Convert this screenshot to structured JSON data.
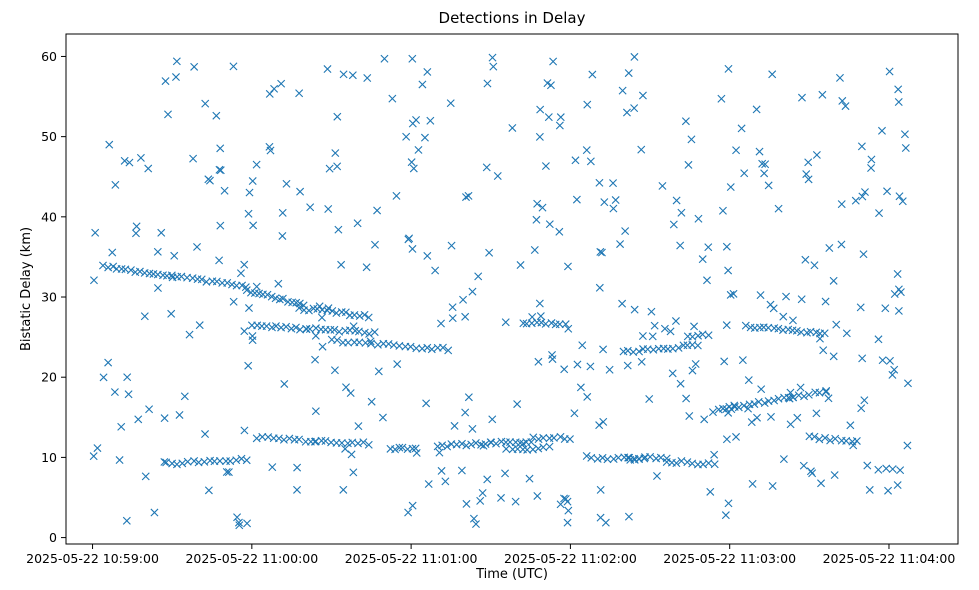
{
  "chart_data": {
    "type": "scatter",
    "title": "Detections in Delay",
    "xlabel": "Time (UTC)",
    "ylabel": "Bistatic Delay (km)",
    "xlim": [
      "2025-05-22 10:58:50",
      "2025-05-22 11:04:26"
    ],
    "ylim": [
      -0.8,
      62.8
    ],
    "x_ticks": [
      "2025-05-22 10:59:00",
      "2025-05-22 11:00:00",
      "2025-05-22 11:01:00",
      "2025-05-22 11:02:00",
      "2025-05-22 11:03:00",
      "2025-05-22 11:04:00"
    ],
    "y_ticks": [
      0,
      10,
      20,
      30,
      40,
      50,
      60
    ],
    "marker": "x",
    "grid": false,
    "series": [
      {
        "color": "#1f77b4",
        "tracks": [
          {
            "start": "2025-05-22 10:59:04",
            "end": "2025-05-22 10:59:30",
            "y_start": 33.8,
            "y_end": 32.6,
            "count": 16
          },
          {
            "start": "2025-05-22 10:59:30",
            "end": "2025-05-22 10:59:58",
            "y_start": 32.6,
            "y_end": 31.4,
            "count": 16
          },
          {
            "start": "2025-05-22 10:59:58",
            "end": "2025-05-22 11:00:18",
            "y_start": 30.8,
            "y_end": 29.2,
            "count": 14
          },
          {
            "start": "2025-05-22 11:00:18",
            "end": "2025-05-22 11:00:44",
            "y_start": 28.6,
            "y_end": 27.6,
            "count": 16
          },
          {
            "start": "2025-05-22 11:00:00",
            "end": "2025-05-22 11:00:46",
            "y_start": 26.5,
            "y_end": 25.5,
            "count": 26
          },
          {
            "start": "2025-05-22 10:59:28",
            "end": "2025-05-22 10:59:58",
            "y_start": 9.2,
            "y_end": 9.8,
            "count": 16
          },
          {
            "start": "2025-05-22 11:00:02",
            "end": "2025-05-22 11:00:24",
            "y_start": 12.5,
            "y_end": 12.0,
            "count": 12
          },
          {
            "start": "2025-05-22 11:00:24",
            "end": "2025-05-22 11:00:44",
            "y_start": 12.0,
            "y_end": 11.7,
            "count": 11
          },
          {
            "start": "2025-05-22 11:00:30",
            "end": "2025-05-22 11:00:58",
            "y_start": 24.6,
            "y_end": 23.8,
            "count": 14
          },
          {
            "start": "2025-05-22 11:01:00",
            "end": "2025-05-22 11:01:14",
            "y_start": 23.8,
            "y_end": 23.5,
            "count": 8
          },
          {
            "start": "2025-05-22 11:00:52",
            "end": "2025-05-22 11:01:02",
            "y_start": 11.0,
            "y_end": 11.2,
            "count": 7
          },
          {
            "start": "2025-05-22 11:01:10",
            "end": "2025-05-22 11:01:30",
            "y_start": 11.4,
            "y_end": 11.8,
            "count": 12
          },
          {
            "start": "2025-05-22 11:01:30",
            "end": "2025-05-22 11:01:45",
            "y_start": 11.8,
            "y_end": 12.0,
            "count": 9
          },
          {
            "start": "2025-05-22 11:01:36",
            "end": "2025-05-22 11:01:52",
            "y_start": 11.0,
            "y_end": 11.2,
            "count": 9
          },
          {
            "start": "2025-05-22 11:01:42",
            "end": "2025-05-22 11:01:58",
            "y_start": 26.8,
            "y_end": 26.5,
            "count": 10
          },
          {
            "start": "2025-05-22 11:01:46",
            "end": "2025-05-22 11:02:00",
            "y_start": 12.4,
            "y_end": 12.4,
            "count": 8
          },
          {
            "start": "2025-05-22 11:02:06",
            "end": "2025-05-22 11:02:28",
            "y_start": 10.0,
            "y_end": 9.8,
            "count": 12
          },
          {
            "start": "2025-05-22 11:02:20",
            "end": "2025-05-22 11:02:48",
            "y_start": 23.2,
            "y_end": 24.0,
            "count": 16
          },
          {
            "start": "2025-05-22 11:02:22",
            "end": "2025-05-22 11:02:36",
            "y_start": 10.0,
            "y_end": 10.0,
            "count": 8
          },
          {
            "start": "2025-05-22 11:02:36",
            "end": "2025-05-22 11:02:52",
            "y_start": 9.5,
            "y_end": 9.2,
            "count": 9
          },
          {
            "start": "2025-05-22 11:02:44",
            "end": "2025-05-22 11:02:52",
            "y_start": 25.0,
            "y_end": 25.4,
            "count": 5
          },
          {
            "start": "2025-05-22 11:02:54",
            "end": "2025-05-22 11:03:02",
            "y_start": 15.8,
            "y_end": 16.2,
            "count": 6
          },
          {
            "start": "2025-05-22 11:03:00",
            "end": "2025-05-22 11:03:24",
            "y_start": 16.2,
            "y_end": 17.5,
            "count": 14
          },
          {
            "start": "2025-05-22 11:03:24",
            "end": "2025-05-22 11:03:36",
            "y_start": 17.5,
            "y_end": 18.2,
            "count": 7
          },
          {
            "start": "2025-05-22 11:03:06",
            "end": "2025-05-22 11:03:36",
            "y_start": 26.3,
            "y_end": 25.5,
            "count": 18
          },
          {
            "start": "2025-05-22 11:03:56",
            "end": "2025-05-22 11:04:04",
            "y_start": 8.5,
            "y_end": 8.5,
            "count": 4
          },
          {
            "start": "2025-05-22 11:03:30",
            "end": "2025-05-22 11:03:48",
            "y_start": 12.5,
            "y_end": 12.0,
            "count": 10
          }
        ],
        "scatter_seed": 20250522,
        "scatter_count": 420
      }
    ]
  }
}
